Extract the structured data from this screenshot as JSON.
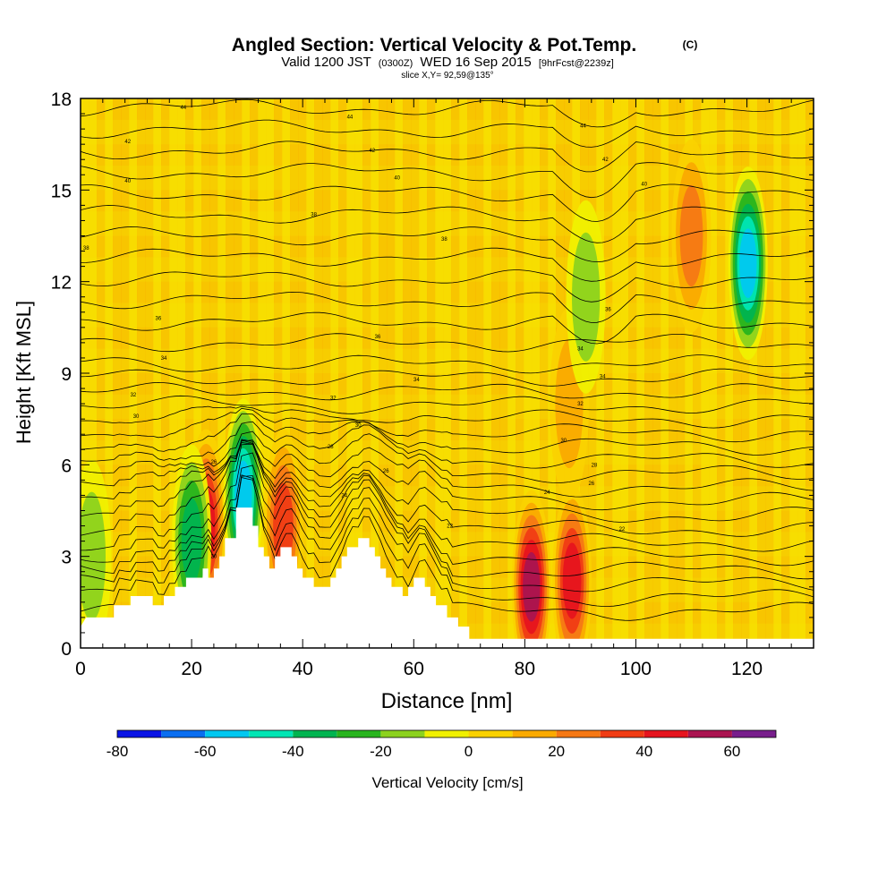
{
  "chart_data": {
    "type": "heatmap",
    "title": "Angled Section: Vertical Velocity & Pot.Temp.",
    "title_units": "(C)",
    "subtitle": {
      "part1": "Valid 1200 JST",
      "part2": "(0300Z)",
      "part3": "WED 16 Sep 2015",
      "part4": "[9hrFcst@2239z]"
    },
    "slice_label": "slice X,Y= 92,59@135°",
    "xlabel": "Distance [nm]",
    "ylabel": "Height [Kft MSL]",
    "xlim": [
      0,
      132
    ],
    "ylim": [
      0,
      18
    ],
    "xticks": [
      0,
      20,
      40,
      60,
      80,
      100,
      120
    ],
    "yticks": [
      0,
      3,
      6,
      9,
      12,
      15,
      18
    ],
    "colorbar": {
      "label": "Vertical Velocity [cm/s]",
      "bins": [
        -80,
        -70,
        -60,
        -50,
        -40,
        -30,
        -20,
        -10,
        0,
        10,
        20,
        30,
        40,
        50,
        60,
        70
      ],
      "tick_labels": [
        -80,
        -60,
        -40,
        -20,
        0,
        20,
        40,
        60
      ],
      "colors": [
        "#0a14e6",
        "#0a6ef0",
        "#00c8f0",
        "#00e6b4",
        "#00b450",
        "#28b41e",
        "#8cd21e",
        "#f0f000",
        "#fad200",
        "#faaa00",
        "#f57814",
        "#f03c14",
        "#e6141e",
        "#aa1450",
        "#781e8c"
      ]
    },
    "terrain": [
      [
        0,
        0.7
      ],
      [
        1,
        1.0
      ],
      [
        6,
        1.0
      ],
      [
        6,
        1.4
      ],
      [
        9,
        1.4
      ],
      [
        9,
        1.7
      ],
      [
        13,
        1.7
      ],
      [
        13,
        1.4
      ],
      [
        15,
        1.4
      ],
      [
        15,
        1.7
      ],
      [
        17,
        1.7
      ],
      [
        17,
        2.0
      ],
      [
        19,
        2.0
      ],
      [
        19,
        2.3
      ],
      [
        22,
        2.3
      ],
      [
        22,
        2.6
      ],
      [
        23,
        2.6
      ],
      [
        23,
        2.3
      ],
      [
        24,
        2.3
      ],
      [
        24,
        2.6
      ],
      [
        25,
        2.6
      ],
      [
        25,
        3.0
      ],
      [
        26,
        3.0
      ],
      [
        26,
        3.6
      ],
      [
        28,
        3.6
      ],
      [
        28,
        4.6
      ],
      [
        31,
        4.6
      ],
      [
        31,
        4.0
      ],
      [
        32,
        4.0
      ],
      [
        32,
        3.3
      ],
      [
        33,
        3.3
      ],
      [
        33,
        3.0
      ],
      [
        34,
        3.0
      ],
      [
        34,
        2.6
      ],
      [
        35,
        2.6
      ],
      [
        35,
        3.0
      ],
      [
        36,
        3.0
      ],
      [
        36,
        3.3
      ],
      [
        38,
        3.3
      ],
      [
        38,
        3.0
      ],
      [
        39,
        3.0
      ],
      [
        39,
        2.6
      ],
      [
        40,
        2.6
      ],
      [
        40,
        2.3
      ],
      [
        42,
        2.3
      ],
      [
        42,
        2.0
      ],
      [
        45,
        2.0
      ],
      [
        45,
        2.3
      ],
      [
        46,
        2.3
      ],
      [
        46,
        2.6
      ],
      [
        47,
        2.6
      ],
      [
        47,
        3.0
      ],
      [
        48,
        3.0
      ],
      [
        48,
        3.3
      ],
      [
        50,
        3.3
      ],
      [
        50,
        3.6
      ],
      [
        52,
        3.6
      ],
      [
        52,
        3.3
      ],
      [
        53,
        3.3
      ],
      [
        53,
        3.0
      ],
      [
        54,
        3.0
      ],
      [
        54,
        2.6
      ],
      [
        55,
        2.6
      ],
      [
        55,
        2.3
      ],
      [
        56,
        2.3
      ],
      [
        56,
        2.0
      ],
      [
        58,
        2.0
      ],
      [
        58,
        1.7
      ],
      [
        59,
        1.7
      ],
      [
        59,
        2.0
      ],
      [
        60,
        2.0
      ],
      [
        60,
        2.3
      ],
      [
        62,
        2.3
      ],
      [
        62,
        2.0
      ],
      [
        63,
        2.0
      ],
      [
        63,
        1.7
      ],
      [
        64,
        1.7
      ],
      [
        64,
        1.4
      ],
      [
        66,
        1.4
      ],
      [
        66,
        1.0
      ],
      [
        68,
        1.0
      ],
      [
        68,
        0.7
      ],
      [
        70,
        0.7
      ],
      [
        70,
        0.3
      ],
      [
        132,
        0.3
      ]
    ],
    "velocity_features": [
      {
        "x": 22.6,
        "y": 4.0,
        "value": 45
      },
      {
        "x": 81.2,
        "y": 2.0,
        "value": 55
      },
      {
        "x": 88.5,
        "y": 2.2,
        "value": 45
      },
      {
        "x": 120.2,
        "y": 12.6,
        "value": -55
      },
      {
        "x": 110.0,
        "y": 13.5,
        "value": 30
      },
      {
        "x": 29.3,
        "y": 5.0,
        "value": -55
      },
      {
        "x": 20.0,
        "y": 3.5,
        "value": -35
      },
      {
        "x": 88.0,
        "y": 8.0,
        "value": 20
      },
      {
        "x": 36.5,
        "y": 4.0,
        "value": 35
      },
      {
        "x": 91.0,
        "y": 11.5,
        "value": -20
      },
      {
        "x": 2.0,
        "y": 3.0,
        "value": -20
      }
    ],
    "isentrope_labels": [
      {
        "text": "44",
        "x": 18.5,
        "y": 17.7
      },
      {
        "text": "44",
        "x": 48.5,
        "y": 17.4
      },
      {
        "text": "44",
        "x": 90.5,
        "y": 17.1
      },
      {
        "text": "42",
        "x": 8.5,
        "y": 16.6
      },
      {
        "text": "42",
        "x": 52.5,
        "y": 16.3
      },
      {
        "text": "42",
        "x": 94.5,
        "y": 16.0
      },
      {
        "text": "40",
        "x": 8.5,
        "y": 15.3
      },
      {
        "text": "40",
        "x": 57.0,
        "y": 15.4
      },
      {
        "text": "40",
        "x": 101.5,
        "y": 15.2
      },
      {
        "text": "38",
        "x": 42.0,
        "y": 14.2
      },
      {
        "text": "38",
        "x": 65.5,
        "y": 13.4
      },
      {
        "text": "38",
        "x": 1.0,
        "y": 13.1
      },
      {
        "text": "36",
        "x": 95.0,
        "y": 11.1
      },
      {
        "text": "36",
        "x": 14.0,
        "y": 10.8
      },
      {
        "text": "36",
        "x": 53.5,
        "y": 10.2
      },
      {
        "text": "34",
        "x": 90.0,
        "y": 9.8
      },
      {
        "text": "34",
        "x": 15.0,
        "y": 9.5
      },
      {
        "text": "34",
        "x": 60.5,
        "y": 8.8
      },
      {
        "text": "34",
        "x": 94.0,
        "y": 8.9
      },
      {
        "text": "32",
        "x": 9.5,
        "y": 8.3
      },
      {
        "text": "32",
        "x": 45.5,
        "y": 8.2
      },
      {
        "text": "32",
        "x": 90.0,
        "y": 8.0
      },
      {
        "text": "30",
        "x": 10.0,
        "y": 7.6
      },
      {
        "text": "30",
        "x": 50.0,
        "y": 7.3
      },
      {
        "text": "30",
        "x": 87.0,
        "y": 6.8
      },
      {
        "text": "28",
        "x": 45.0,
        "y": 6.6
      },
      {
        "text": "28",
        "x": 92.5,
        "y": 6.0
      },
      {
        "text": "26",
        "x": 24.0,
        "y": 6.1
      },
      {
        "text": "26",
        "x": 55.0,
        "y": 5.8
      },
      {
        "text": "26",
        "x": 92.0,
        "y": 5.4
      },
      {
        "text": "24",
        "x": 47.5,
        "y": 5.0
      },
      {
        "text": "24",
        "x": 84.0,
        "y": 5.1
      },
      {
        "text": "22",
        "x": 66.5,
        "y": 4.0
      },
      {
        "text": "22",
        "x": 97.5,
        "y": 3.9
      },
      {
        "text": "20",
        "x": 24.0,
        "y": 3.0
      }
    ]
  }
}
